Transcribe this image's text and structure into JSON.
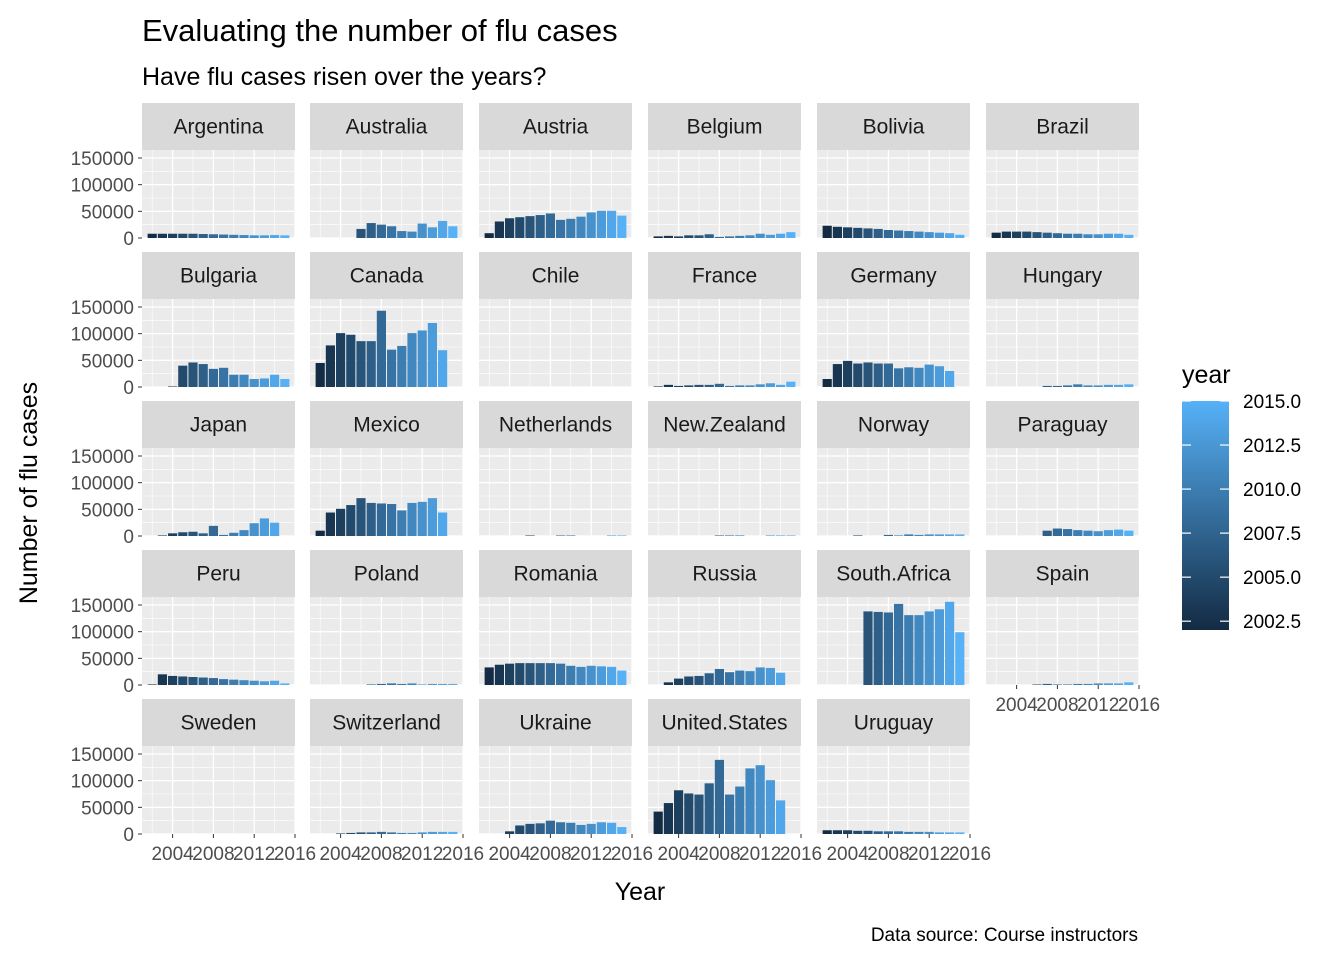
{
  "chart_data": {
    "type": "bar",
    "title": "Evaluating the number of flu cases",
    "subtitle": "Have flu cases risen over the years?",
    "xlabel": "Year",
    "ylabel": "Number of flu cases",
    "caption": "Data source: Course instructors",
    "x_ticks": [
      2004,
      2008,
      2012,
      2016
    ],
    "y_ticks": [
      0,
      50000,
      100000,
      150000
    ],
    "x_range": [
      2001,
      2016
    ],
    "y_range": [
      0,
      165000
    ],
    "grid": true,
    "legend": {
      "title": "year",
      "position": "right",
      "type": "colorbar",
      "breaks": [
        2015.0,
        2012.5,
        2010.0,
        2007.5,
        2005.0,
        2002.5
      ],
      "break_labels": [
        "2015.0",
        "2012.5",
        "2010.0",
        "2007.5",
        "2005.0",
        "2002.5"
      ],
      "low_color": "#132B43",
      "high_color": "#56B1F7",
      "range": [
        2002,
        2015
      ]
    },
    "years": [
      2002,
      2003,
      2004,
      2005,
      2006,
      2007,
      2008,
      2009,
      2010,
      2011,
      2012,
      2013,
      2014,
      2015
    ],
    "panels": [
      {
        "country": "Argentina",
        "values": [
          8000,
          8000,
          8000,
          8000,
          8000,
          7500,
          7000,
          6500,
          6000,
          5500,
          5000,
          5000,
          5500,
          5000
        ]
      },
      {
        "country": "Australia",
        "values": [
          0,
          0,
          0,
          0,
          17000,
          28000,
          25000,
          22000,
          13000,
          12000,
          27000,
          20000,
          32000,
          22000
        ]
      },
      {
        "country": "Austria",
        "values": [
          9000,
          31000,
          37000,
          39000,
          41000,
          43000,
          46000,
          34000,
          36000,
          40000,
          48000,
          51000,
          51000,
          42000
        ]
      },
      {
        "country": "Belgium",
        "values": [
          3000,
          4000,
          3000,
          5000,
          5000,
          7000,
          2000,
          3000,
          4000,
          5000,
          8000,
          6000,
          8000,
          11000
        ]
      },
      {
        "country": "Bolivia",
        "values": [
          23000,
          21000,
          20000,
          19000,
          18000,
          17000,
          15000,
          14000,
          13000,
          12000,
          11000,
          10000,
          9000,
          6000
        ]
      },
      {
        "country": "Brazil",
        "values": [
          10000,
          12000,
          12000,
          12000,
          11000,
          10000,
          9000,
          8000,
          8000,
          7000,
          7000,
          8000,
          8000,
          6000
        ]
      },
      {
        "country": "Bulgaria",
        "values": [
          0,
          0,
          1000,
          40000,
          46000,
          43000,
          34000,
          36000,
          23000,
          23000,
          15000,
          16000,
          23000,
          15000
        ]
      },
      {
        "country": "Canada",
        "values": [
          45000,
          78000,
          101000,
          98000,
          86000,
          86000,
          143000,
          70000,
          77000,
          101000,
          106000,
          120000,
          69000,
          0
        ]
      },
      {
        "country": "Chile",
        "values": [
          0,
          0,
          0,
          0,
          0,
          0,
          0,
          0,
          0,
          0,
          0,
          0,
          0,
          0
        ]
      },
      {
        "country": "France",
        "values": [
          1000,
          4000,
          2000,
          3000,
          4000,
          4000,
          6000,
          2000,
          3000,
          3000,
          5000,
          7000,
          4000,
          10000
        ]
      },
      {
        "country": "Germany",
        "values": [
          15000,
          43000,
          49000,
          44000,
          46000,
          44000,
          44000,
          35000,
          37000,
          36000,
          42000,
          39000,
          30000,
          0
        ]
      },
      {
        "country": "Hungary",
        "values": [
          0,
          0,
          0,
          0,
          0,
          2000,
          2000,
          3000,
          5000,
          3000,
          3000,
          4000,
          4000,
          5000
        ]
      },
      {
        "country": "Japan",
        "values": [
          0,
          1000,
          5000,
          7000,
          8000,
          5000,
          19000,
          2000,
          6000,
          11000,
          24000,
          33000,
          25000,
          0
        ]
      },
      {
        "country": "Mexico",
        "values": [
          10000,
          44000,
          51000,
          58000,
          71000,
          62000,
          61000,
          60000,
          48000,
          62000,
          64000,
          71000,
          44000,
          0
        ]
      },
      {
        "country": "Netherlands",
        "values": [
          0,
          0,
          0,
          0,
          1000,
          0,
          0,
          1000,
          1000,
          0,
          0,
          0,
          1000,
          1000
        ]
      },
      {
        "country": "New.Zealand",
        "values": [
          0,
          0,
          0,
          0,
          0,
          0,
          1000,
          1000,
          1000,
          0,
          0,
          1000,
          1000,
          1000
        ]
      },
      {
        "country": "Norway",
        "values": [
          0,
          0,
          0,
          1000,
          0,
          0,
          2000,
          1000,
          3000,
          2000,
          3000,
          3000,
          3000,
          3000
        ]
      },
      {
        "country": "Paraguay",
        "values": [
          0,
          0,
          0,
          0,
          0,
          10000,
          14000,
          13000,
          11000,
          10000,
          9000,
          11000,
          12000,
          10000
        ]
      },
      {
        "country": "Peru",
        "values": [
          1000,
          20000,
          17000,
          16000,
          15000,
          14000,
          13000,
          11000,
          10000,
          9000,
          8000,
          7000,
          8000,
          3000
        ]
      },
      {
        "country": "Poland",
        "values": [
          0,
          0,
          0,
          0,
          0,
          1000,
          2000,
          3000,
          2000,
          3000,
          1000,
          2000,
          2000,
          2000
        ]
      },
      {
        "country": "Romania",
        "values": [
          33000,
          38000,
          40000,
          41000,
          41000,
          41000,
          41000,
          40000,
          36000,
          34000,
          36000,
          35000,
          34000,
          27000
        ]
      },
      {
        "country": "Russia",
        "values": [
          0,
          5000,
          12000,
          16000,
          17000,
          22000,
          30000,
          24000,
          27000,
          26000,
          33000,
          32000,
          23000,
          0
        ]
      },
      {
        "country": "South.Africa",
        "values": [
          0,
          0,
          0,
          0,
          138000,
          137000,
          136000,
          152000,
          131000,
          131000,
          138000,
          142000,
          156000,
          99000
        ]
      },
      {
        "country": "Spain",
        "values": [
          0,
          0,
          0,
          0,
          1000,
          2000,
          1000,
          1000,
          2000,
          2000,
          3000,
          3000,
          3000,
          5000
        ]
      },
      {
        "country": "Sweden",
        "values": [
          0,
          0,
          0,
          0,
          0,
          0,
          0,
          0,
          0,
          0,
          0,
          0,
          0,
          0
        ]
      },
      {
        "country": "Switzerland",
        "values": [
          0,
          0,
          1000,
          2000,
          3000,
          3000,
          4000,
          3000,
          2000,
          2000,
          3000,
          4000,
          4000,
          4000
        ]
      },
      {
        "country": "Ukraine",
        "values": [
          0,
          0,
          5000,
          16000,
          19000,
          20000,
          25000,
          22000,
          21000,
          17000,
          19000,
          22000,
          21000,
          13000
        ]
      },
      {
        "country": "United.States",
        "values": [
          42000,
          58000,
          82000,
          76000,
          74000,
          95000,
          139000,
          74000,
          89000,
          123000,
          129000,
          101000,
          63000,
          0
        ]
      },
      {
        "country": "Uruguay",
        "values": [
          7000,
          7000,
          7000,
          6000,
          6000,
          5000,
          5000,
          5000,
          4000,
          4000,
          4000,
          3000,
          3000,
          3000
        ]
      }
    ]
  }
}
